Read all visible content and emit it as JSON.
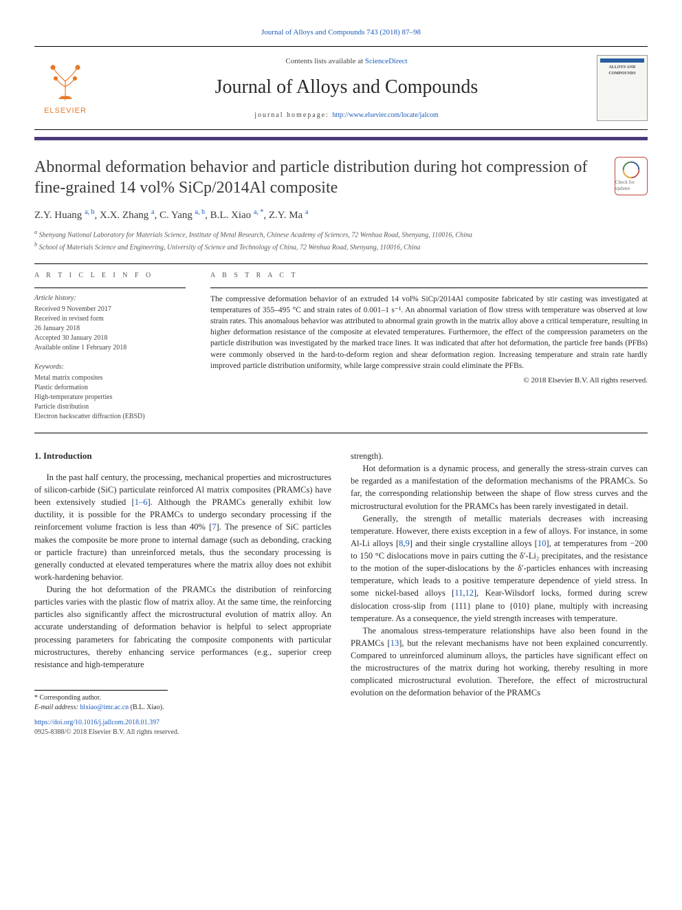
{
  "citation": "Journal of Alloys and Compounds 743 (2018) 87–98",
  "header": {
    "contents_prefix": "Contents lists available at ",
    "contents_link": "ScienceDirect",
    "journal_name": "Journal of Alloys and Compounds",
    "homepage_prefix": "journal homepage: ",
    "homepage_url": "http://www.elsevier.com/locate/jalcom",
    "elsevier_label": "ELSEVIER",
    "cover_title": "ALLOYS AND COMPOUNDS"
  },
  "article": {
    "title": "Abnormal deformation behavior and particle distribution during hot compression of fine-grained 14 vol% SiCp/2014Al composite",
    "crossmark_label": "Check for updates",
    "authors_html": "Z.Y. Huang <sup>a, b</sup>, X.X. Zhang <sup>a</sup>, C. Yang <sup>a, b</sup>, B.L. Xiao <sup>a, *</sup>, Z.Y. Ma <sup>a</sup>",
    "affiliations": {
      "a": "Shenyang National Laboratory for Materials Science, Institute of Metal Research, Chinese Academy of Sciences, 72 Wenhua Road, Shenyang, 110016, China",
      "b": "School of Materials Science and Engineering, University of Science and Technology of China, 72 Wenhua Road, Shenyang, 110016, China"
    }
  },
  "info": {
    "section_label": "A R T I C L E  I N F O",
    "history_label": "Article history:",
    "history": [
      "Received 9 November 2017",
      "Received in revised form",
      "26 January 2018",
      "Accepted 30 January 2018",
      "Available online 1 February 2018"
    ],
    "keywords_label": "Keywords:",
    "keywords": [
      "Metal matrix composites",
      "Plastic deformation",
      "High-temperature properties",
      "Particle distribution",
      "Electron backscatter diffraction (EBSD)"
    ]
  },
  "abstract": {
    "section_label": "A B S T R A C T",
    "text": "The compressive deformation behavior of an extruded 14 vol% SiCp/2014Al composite fabricated by stir casting was investigated at temperatures of 355–495 °C and strain rates of 0.001–1 s⁻¹. An abnormal variation of flow stress with temperature was observed at low strain rates. This anomalous behavior was attributed to abnormal grain growth in the matrix alloy above a critical temperature, resulting in higher deformation resistance of the composite at elevated temperatures. Furthermore, the effect of the compression parameters on the particle distribution was investigated by the marked trace lines. It was indicated that after hot deformation, the particle free bands (PFBs) were commonly observed in the hard-to-deform region and shear deformation region. Increasing temperature and strain rate hardly improved particle distribution uniformity, while large compressive strain could eliminate the PFBs.",
    "copyright": "© 2018 Elsevier B.V. All rights reserved."
  },
  "body": {
    "section_heading": "1. Introduction",
    "col1": [
      "In the past half century, the processing, mechanical properties and microstructures of silicon-carbide (SiC) particulate reinforced Al matrix composites (PRAMCs) have been extensively studied [<a>1–6</a>]. Although the PRAMCs generally exhibit low ductility, it is possible for the PRAMCs to undergo secondary processing if the reinforcement volume fraction is less than 40% [<a>7</a>]. The presence of SiC particles makes the composite be more prone to internal damage (such as debonding, cracking or particle fracture) than unreinforced metals, thus the secondary processing is generally conducted at elevated temperatures where the matrix alloy does not exhibit work-hardening behavior.",
      "During the hot deformation of the PRAMCs the distribution of reinforcing particles varies with the plastic flow of matrix alloy. At the same time, the reinforcing particles also significantly affect the microstructural evolution of matrix alloy. An accurate understanding of deformation behavior is helpful to select appropriate processing parameters for fabricating the composite components with particular microstructures, thereby enhancing service performances (e.g., superior creep resistance and high-temperature"
    ],
    "col2": [
      "strength).",
      "Hot deformation is a dynamic process, and generally the stress-strain curves can be regarded as a manifestation of the deformation mechanisms of the PRAMCs. So far, the corresponding relationship between the shape of flow stress curves and the microstructural evolution for the PRAMCs has been rarely investigated in detail.",
      "Generally, the strength of metallic materials decreases with increasing temperature. However, there exists exception in a few of alloys. For instance, in some Al-Li alloys [<a>8</a>,<a>9</a>] and their single crystalline alloys [<a>10</a>], at temperatures from −200 to 150 °C dislocations move in pairs cutting the δ′-Li₂ precipitates, and the resistance to the motion of the super-dislocations by the δ′-particles enhances with increasing temperature, which leads to a positive temperature dependence of yield stress. In some nickel-based alloys [<a>11</a>,<a>12</a>], Kear-Wilsdorf locks, formed during screw dislocation cross-slip from {111} plane to {010} plane, multiply with increasing temperature. As a consequence, the yield strength increases with temperature.",
      "The anomalous stress-temperature relationships have also been found in the PRAMCs [<a>13</a>], but the relevant mechanisms have not been explained concurrently. Compared to unreinforced aluminum alloys, the particles have significant effect on the microstructures of the matrix during hot working, thereby resulting in more complicated microstructural evolution. Therefore, the effect of microstructural evolution on the deformation behavior of the PRAMCs"
    ]
  },
  "footnote": {
    "corresponding": "* Corresponding author.",
    "email_label": "E-mail address: ",
    "email": "blxiao@imr.ac.cn",
    "email_suffix": " (B.L. Xiao)."
  },
  "doi": {
    "url": "https://doi.org/10.1016/j.jallcom.2018.01.397",
    "issn_line": "0925-8388/© 2018 Elsevier B.V. All rights reserved."
  },
  "colors": {
    "link": "#1a5bb8",
    "accent_bar": "#4a3a7a",
    "elsevier_orange": "#e97826",
    "crossmark_border": "#b84a3a"
  }
}
